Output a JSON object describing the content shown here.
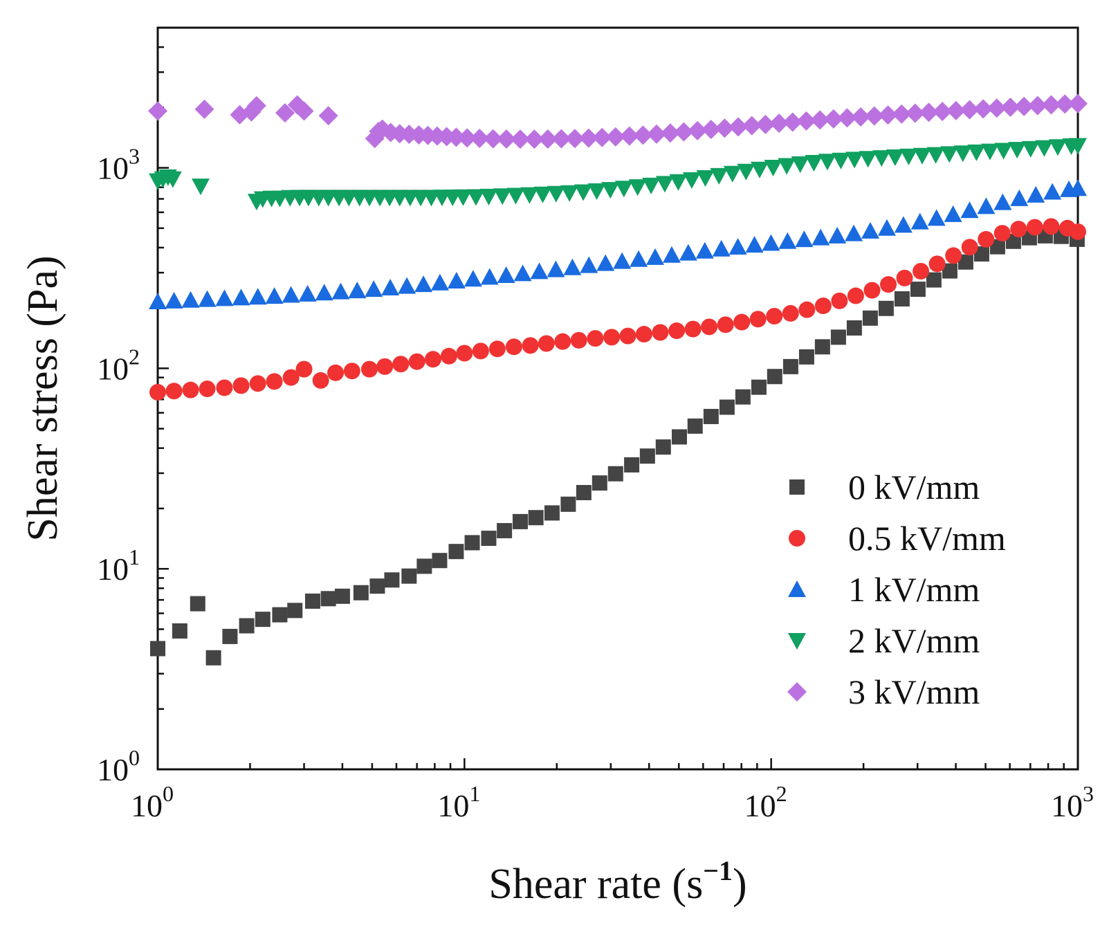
{
  "chart_data": {
    "type": "scatter",
    "xscale": "log",
    "yscale": "log",
    "xlim": [
      1,
      1000
    ],
    "ylim": [
      1,
      5000
    ],
    "xlabel": "Shear rate (s",
    "xlabel_sup": "−1",
    "xlabel_end": ")",
    "ylabel": "Shear stress (Pa)",
    "xticks": [
      {
        "base": "10",
        "exp": "0"
      },
      {
        "base": "10",
        "exp": "1"
      },
      {
        "base": "10",
        "exp": "2"
      },
      {
        "base": "10",
        "exp": "3"
      }
    ],
    "yticks": [
      {
        "base": "10",
        "exp": "0"
      },
      {
        "base": "10",
        "exp": "1"
      },
      {
        "base": "10",
        "exp": "2"
      },
      {
        "base": "10",
        "exp": "3"
      }
    ],
    "legend_position": "bottom-right",
    "series": [
      {
        "name": "0 kV/mm",
        "marker": "square",
        "color": "#444444",
        "x": [
          1.0,
          1.18,
          1.35,
          1.52,
          1.72,
          1.95,
          2.2,
          2.5,
          2.8,
          3.2,
          3.6,
          4.0,
          4.6,
          5.2,
          5.8,
          6.6,
          7.4,
          8.3,
          9.4,
          10.6,
          12.0,
          13.5,
          15.2,
          17.1,
          19.3,
          21.8,
          24.5,
          27.6,
          31.1,
          35.1,
          39.5,
          44.5,
          50.2,
          56.5,
          63.7,
          71.8,
          80.9,
          91.2,
          102.7,
          115.8,
          130.5,
          147,
          165.7,
          186.7,
          210.4,
          237.1,
          267.2,
          301.1,
          339.3,
          382.4,
          430.9,
          485.6,
          547.2,
          616.6,
          694.8,
          783,
          882.3,
          994.3
        ],
        "y": [
          4.0,
          4.9,
          6.7,
          3.6,
          4.6,
          5.2,
          5.6,
          5.9,
          6.2,
          6.9,
          7.1,
          7.3,
          7.6,
          8.2,
          8.8,
          9.2,
          10.3,
          11.0,
          12.2,
          13.5,
          14.2,
          15.5,
          17.2,
          18.0,
          19.0,
          21.0,
          24.0,
          26.8,
          29.8,
          33.0,
          36.5,
          40.5,
          45.5,
          51.5,
          57.5,
          64.0,
          72.0,
          80.5,
          91.0,
          102,
          114,
          128,
          143,
          159,
          178,
          199,
          222,
          248,
          276,
          306,
          339,
          372,
          404,
          430,
          448,
          458,
          455,
          440
        ]
      },
      {
        "name": "0.5 kV/mm",
        "marker": "circle",
        "color": "#f03232",
        "x": [
          1.0,
          1.13,
          1.28,
          1.45,
          1.65,
          1.87,
          2.12,
          2.4,
          2.72,
          3.0,
          3.4,
          3.8,
          4.3,
          4.9,
          5.5,
          6.2,
          7.0,
          7.9,
          8.9,
          10.0,
          11.3,
          12.8,
          14.5,
          16.4,
          18.5,
          20.9,
          23.6,
          26.7,
          30.2,
          34.1,
          38.5,
          43.5,
          49.2,
          55.6,
          62.8,
          71.0,
          80.2,
          90.6,
          102.4,
          115.7,
          130.8,
          147.8,
          167,
          188.7,
          213.3,
          241,
          272.3,
          307.7,
          347.7,
          392.9,
          444,
          501.7,
          567,
          640.7,
          724,
          818.1,
          924.5,
          1000
        ],
        "y": [
          76,
          77,
          78,
          79,
          80,
          82,
          84,
          86,
          90,
          99,
          87,
          95,
          97,
          99,
          102,
          105,
          108,
          111,
          115,
          119,
          122,
          125,
          128,
          130,
          133,
          136,
          138,
          141,
          143,
          145,
          148,
          151,
          154,
          157,
          161,
          165,
          170,
          176,
          182,
          188,
          196,
          205,
          217,
          230,
          245,
          262,
          282,
          305,
          332,
          365,
          402,
          440,
          472,
          495,
          505,
          510,
          500,
          480
        ]
      },
      {
        "name": "1 kV/mm",
        "marker": "triangle-up",
        "color": "#1a6be0",
        "x": [
          1.0,
          1.13,
          1.28,
          1.45,
          1.65,
          1.87,
          2.12,
          2.4,
          2.72,
          3.08,
          3.49,
          3.95,
          4.47,
          5.06,
          5.73,
          6.49,
          7.35,
          8.32,
          9.42,
          10.67,
          12.08,
          13.68,
          15.49,
          17.54,
          19.86,
          22.49,
          25.46,
          28.83,
          32.65,
          36.97,
          41.86,
          47.4,
          53.67,
          60.77,
          68.81,
          77.91,
          88.22,
          99.89,
          113.1,
          128.1,
          145,
          164.2,
          185.9,
          210.5,
          238.4,
          269.9,
          305.6,
          346,
          391.8,
          443.6,
          502.3,
          568.8,
          644,
          729.2,
          825.7,
          934.9,
          1000
        ],
        "y": [
          215,
          217,
          219,
          221,
          223,
          225,
          227,
          229,
          232,
          235,
          238,
          241,
          244,
          248,
          252,
          257,
          262,
          267,
          273,
          279,
          285,
          291,
          297,
          304,
          311,
          318,
          326,
          334,
          342,
          350,
          358,
          367,
          376,
          385,
          394,
          403,
          412,
          421,
          430,
          439,
          448,
          458,
          470,
          484,
          500,
          518,
          538,
          561,
          586,
          613,
          642,
          672,
          703,
          732,
          758,
          780,
          790
        ]
      },
      {
        "name": "2 kV/mm",
        "marker": "triangle-down",
        "color": "#10a060",
        "x": [
          1.0,
          1.04,
          1.08,
          1.12,
          1.38,
          2.1,
          2.2,
          2.35,
          2.5,
          2.7,
          2.9,
          3.1,
          3.35,
          3.6,
          3.9,
          4.2,
          4.55,
          4.9,
          5.3,
          5.7,
          6.15,
          6.65,
          7.2,
          7.8,
          8.45,
          9.15,
          9.9,
          10.9,
          12.0,
          13.3,
          14.7,
          16.3,
          18.0,
          19.9,
          22.0,
          24.4,
          27.0,
          29.9,
          33.1,
          36.7,
          40.6,
          45,
          49.8,
          55.1,
          61,
          67.6,
          74.8,
          82.8,
          91.7,
          101.5,
          112.4,
          124.4,
          137.8,
          152.5,
          168.8,
          186.9,
          206.9,
          229.1,
          253.6,
          280.8,
          310.8,
          344.1,
          381,
          421.8,
          467,
          517,
          572.4,
          633.7,
          701.6,
          776.7,
          859.9,
          952,
          1000
        ],
        "y": [
          860,
          880,
          900,
          880,
          810,
          680,
          700,
          705,
          705,
          710,
          712,
          712,
          712,
          712,
          712,
          712,
          712,
          712,
          712,
          712,
          712,
          712,
          712,
          712,
          713,
          714,
          715,
          717,
          720,
          724,
          728,
          733,
          738,
          744,
          750,
          758,
          767,
          778,
          790,
          803,
          818,
          834,
          852,
          871,
          892,
          914,
          937,
          960,
          983,
          1005,
          1025,
          1045,
          1062,
          1077,
          1090,
          1102,
          1112,
          1122,
          1132,
          1142,
          1152,
          1163,
          1174,
          1185,
          1197,
          1209,
          1221,
          1234,
          1246,
          1259,
          1272,
          1285,
          1290
        ]
      },
      {
        "name": "3 kV/mm",
        "marker": "diamond",
        "color": "#bb72e0",
        "x": [
          1.0,
          1.42,
          1.85,
          2.02,
          2.1,
          2.6,
          2.85,
          3.0,
          3.6,
          5.1,
          5.25,
          5.4,
          5.75,
          6.15,
          6.6,
          7.1,
          7.6,
          8.15,
          8.75,
          9.4,
          10.2,
          11.2,
          12.4,
          13.7,
          15.2,
          16.9,
          18.7,
          20.7,
          22.9,
          25.4,
          28.1,
          31.1,
          34.5,
          38.2,
          42.3,
          46.9,
          51.9,
          57.5,
          63.7,
          70.5,
          78.1,
          86.5,
          95.8,
          106.1,
          117.5,
          130.2,
          144.2,
          159.7,
          176.9,
          195.9,
          217,
          240.3,
          266.2,
          294.8,
          326.5,
          361.6,
          400.5,
          443.6,
          491.3,
          544.1,
          602.6,
          667.4,
          739.2,
          818.7,
          906.7,
          1000
        ],
        "y": [
          1920,
          1960,
          1840,
          1900,
          2040,
          1880,
          2060,
          1920,
          1820,
          1400,
          1520,
          1560,
          1500,
          1480,
          1470,
          1460,
          1450,
          1440,
          1430,
          1420,
          1410,
          1402,
          1396,
          1392,
          1390,
          1390,
          1392,
          1395,
          1400,
          1407,
          1416,
          1427,
          1440,
          1455,
          1472,
          1491,
          1511,
          1532,
          1554,
          1577,
          1600,
          1623,
          1646,
          1668,
          1690,
          1712,
          1733,
          1754,
          1774,
          1794,
          1814,
          1834,
          1853,
          1872,
          1891,
          1910,
          1929,
          1948,
          1967,
          1986,
          2005,
          2024,
          2043,
          2062,
          2081,
          2090
        ]
      }
    ]
  }
}
